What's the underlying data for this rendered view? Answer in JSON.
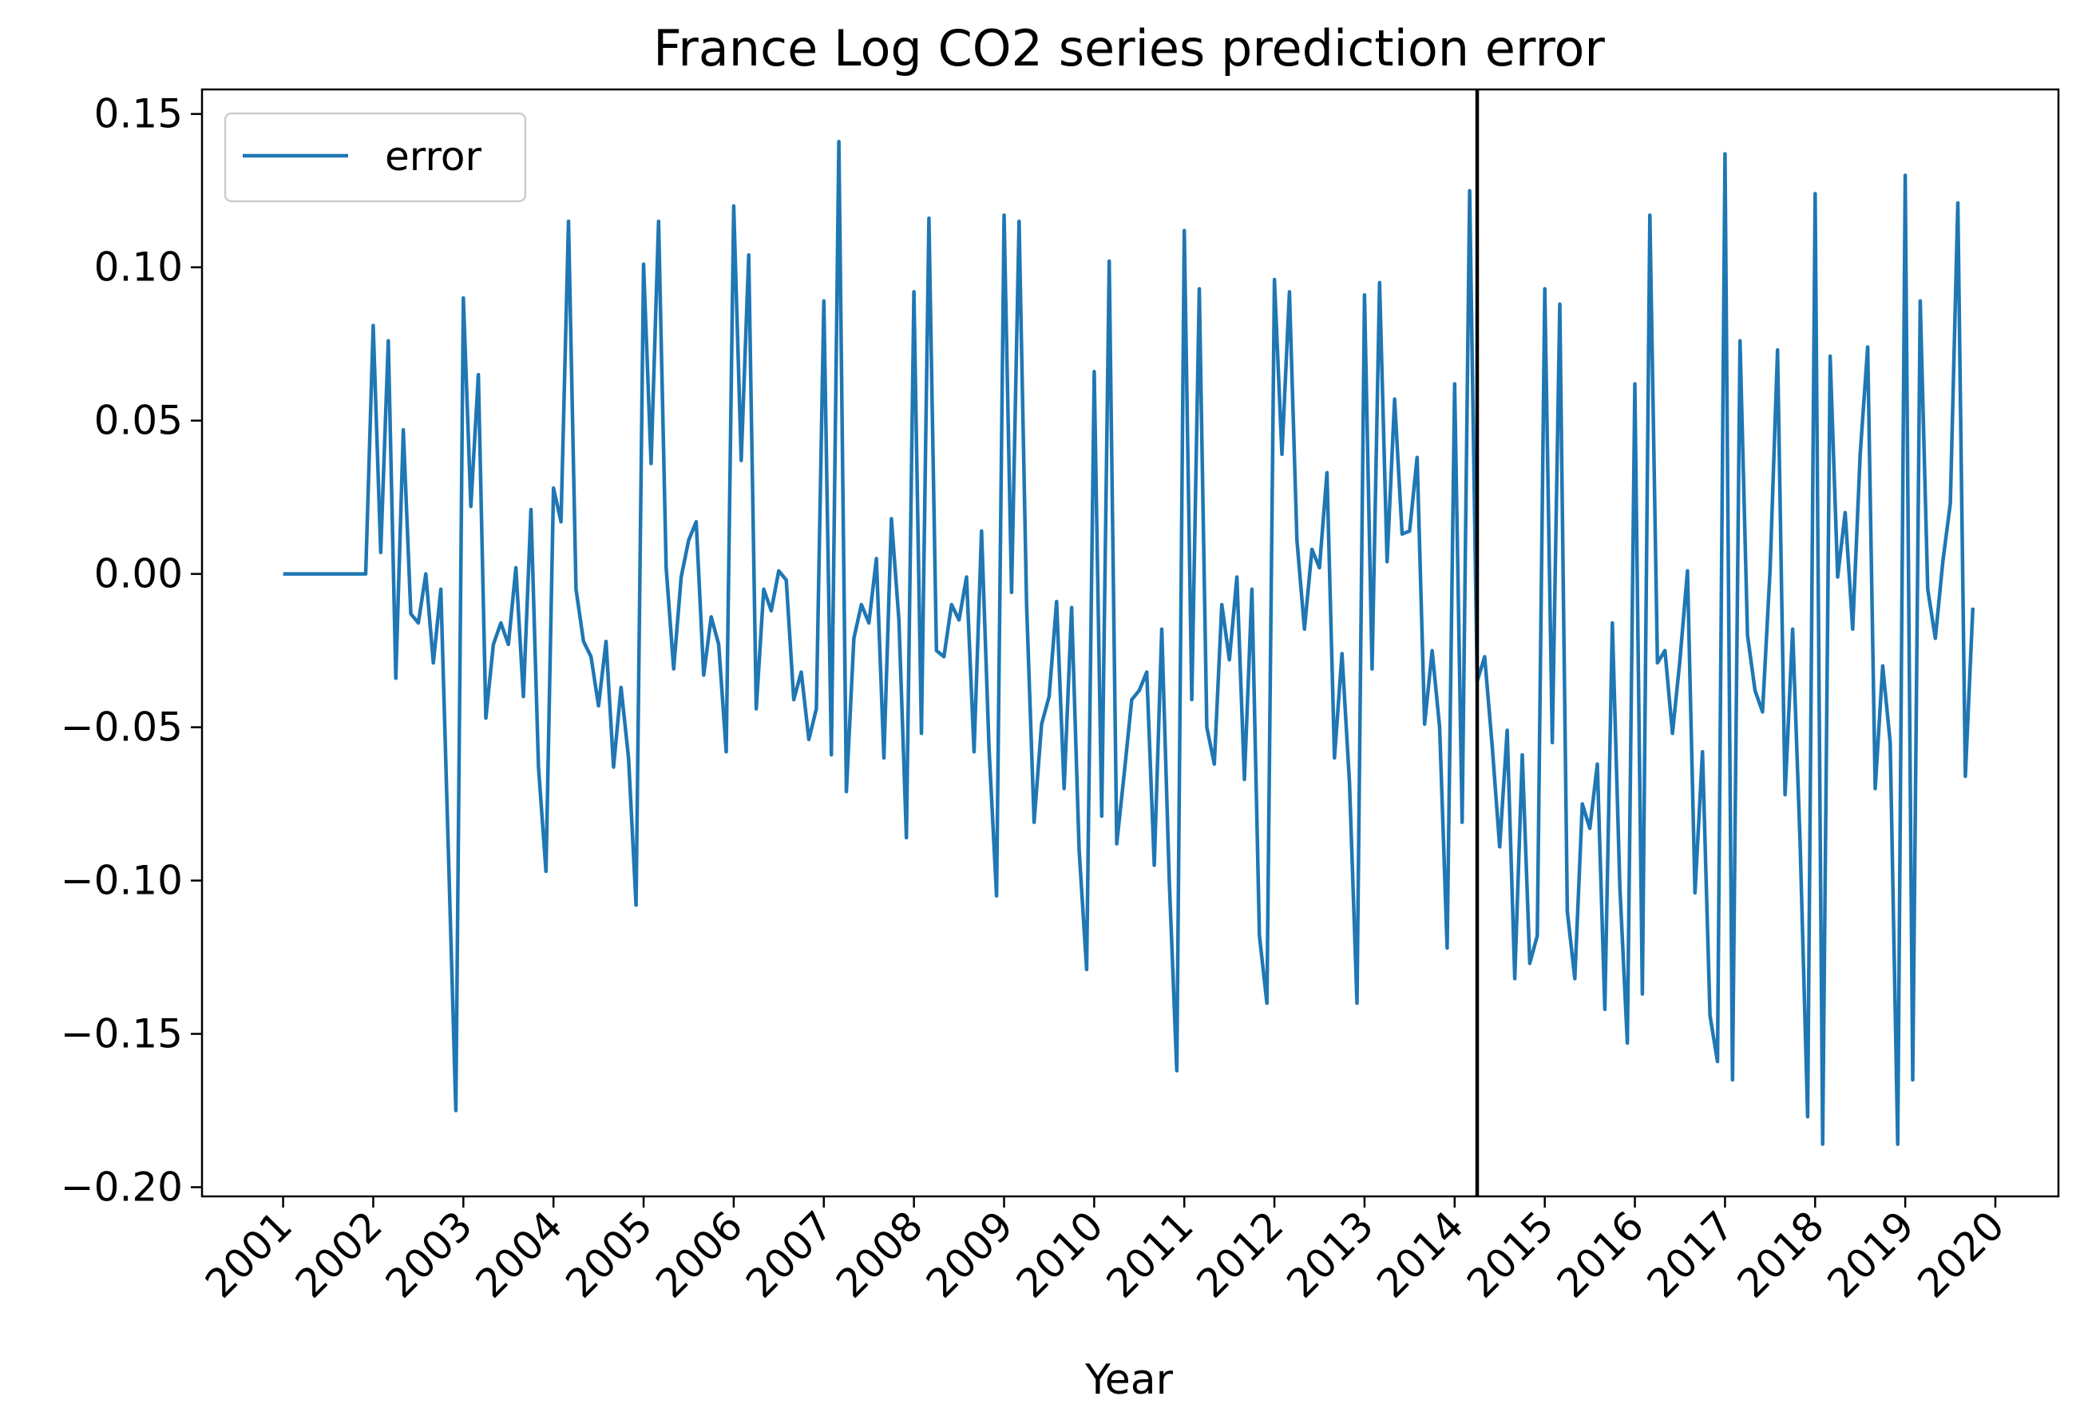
{
  "chart_data": {
    "type": "line",
    "title": "France Log CO2 series prediction error",
    "xlabel": "Year",
    "ylabel": "",
    "x_ticks": [
      "2001",
      "2002",
      "2003",
      "2004",
      "2005",
      "2006",
      "2007",
      "2008",
      "2009",
      "2010",
      "2011",
      "2012",
      "2013",
      "2014",
      "2015",
      "2016",
      "2017",
      "2018",
      "2019",
      "2020"
    ],
    "y_ticks": [
      "0.15",
      "0.10",
      "0.05",
      "0.00",
      "−0.05",
      "−0.10",
      "−0.15",
      "−0.20"
    ],
    "xlim": [
      2000.1,
      2020.7
    ],
    "ylim": [
      -0.203,
      0.158
    ],
    "legend": {
      "entries": [
        "error"
      ],
      "position": "upper-left"
    },
    "vline": {
      "x": 2014.25
    },
    "colors": {
      "series": "#1f77b4",
      "vline": "#000000"
    },
    "series": [
      {
        "name": "error",
        "start_year": 2001,
        "values": [
          0,
          0,
          0,
          0,
          0,
          0,
          0,
          0,
          0,
          0,
          0,
          0,
          0.081,
          0.007,
          0.076,
          -0.034,
          0.047,
          -0.013,
          -0.016,
          0.0,
          -0.029,
          -0.005,
          -0.09,
          -0.175,
          0.09,
          0.022,
          0.065,
          -0.047,
          -0.023,
          -0.016,
          -0.023,
          0.002,
          -0.04,
          0.021,
          -0.063,
          -0.097,
          0.028,
          0.017,
          0.115,
          -0.005,
          -0.022,
          -0.027,
          -0.043,
          -0.022,
          -0.063,
          -0.037,
          -0.06,
          -0.108,
          0.101,
          0.036,
          0.115,
          0.002,
          -0.031,
          -0.001,
          0.011,
          0.017,
          -0.033,
          -0.014,
          -0.023,
          -0.058,
          0.12,
          0.037,
          0.104,
          -0.044,
          -0.005,
          -0.012,
          0.001,
          -0.002,
          -0.041,
          -0.032,
          -0.054,
          -0.044,
          0.089,
          -0.059,
          0.141,
          -0.071,
          -0.021,
          -0.01,
          -0.016,
          0.005,
          -0.06,
          0.018,
          -0.015,
          -0.086,
          0.092,
          -0.052,
          0.116,
          -0.025,
          -0.027,
          -0.01,
          -0.015,
          -0.001,
          -0.058,
          0.014,
          -0.057,
          -0.105,
          0.117,
          -0.006,
          0.115,
          -0.01,
          -0.081,
          -0.049,
          -0.04,
          -0.009,
          -0.07,
          -0.011,
          -0.09,
          -0.129,
          0.066,
          -0.079,
          0.102,
          -0.088,
          -0.065,
          -0.041,
          -0.038,
          -0.032,
          -0.095,
          -0.018,
          -0.1,
          -0.162,
          0.112,
          -0.041,
          0.093,
          -0.05,
          -0.062,
          -0.01,
          -0.028,
          -0.001,
          -0.067,
          -0.005,
          -0.118,
          -0.14,
          0.096,
          0.039,
          0.092,
          0.011,
          -0.018,
          0.008,
          0.002,
          0.033,
          -0.06,
          -0.026,
          -0.068,
          -0.14,
          0.091,
          -0.031,
          0.095,
          0.004,
          0.057,
          0.013,
          0.014,
          0.038,
          -0.049,
          -0.025,
          -0.05,
          -0.122,
          0.062,
          -0.081,
          0.125,
          -0.035,
          -0.027,
          -0.056,
          -0.089,
          -0.051,
          -0.132,
          -0.059,
          -0.127,
          -0.118,
          0.093,
          -0.055,
          0.088,
          -0.11,
          -0.132,
          -0.075,
          -0.083,
          -0.062,
          -0.142,
          -0.016,
          -0.102,
          -0.153,
          0.062,
          -0.137,
          0.117,
          -0.029,
          -0.025,
          -0.052,
          -0.028,
          0.001,
          -0.104,
          -0.058,
          -0.144,
          -0.159,
          0.137,
          -0.165,
          0.076,
          -0.02,
          -0.038,
          -0.045,
          0.001,
          0.073,
          -0.072,
          -0.018,
          -0.088,
          -0.177,
          0.124,
          -0.186,
          0.071,
          -0.001,
          0.02,
          -0.018,
          0.039,
          0.074,
          -0.07,
          -0.03,
          -0.055,
          -0.186,
          0.13,
          -0.165,
          0.089,
          -0.005,
          -0.021,
          0.004,
          0.023,
          0.121,
          -0.066,
          -0.011
        ]
      }
    ]
  }
}
